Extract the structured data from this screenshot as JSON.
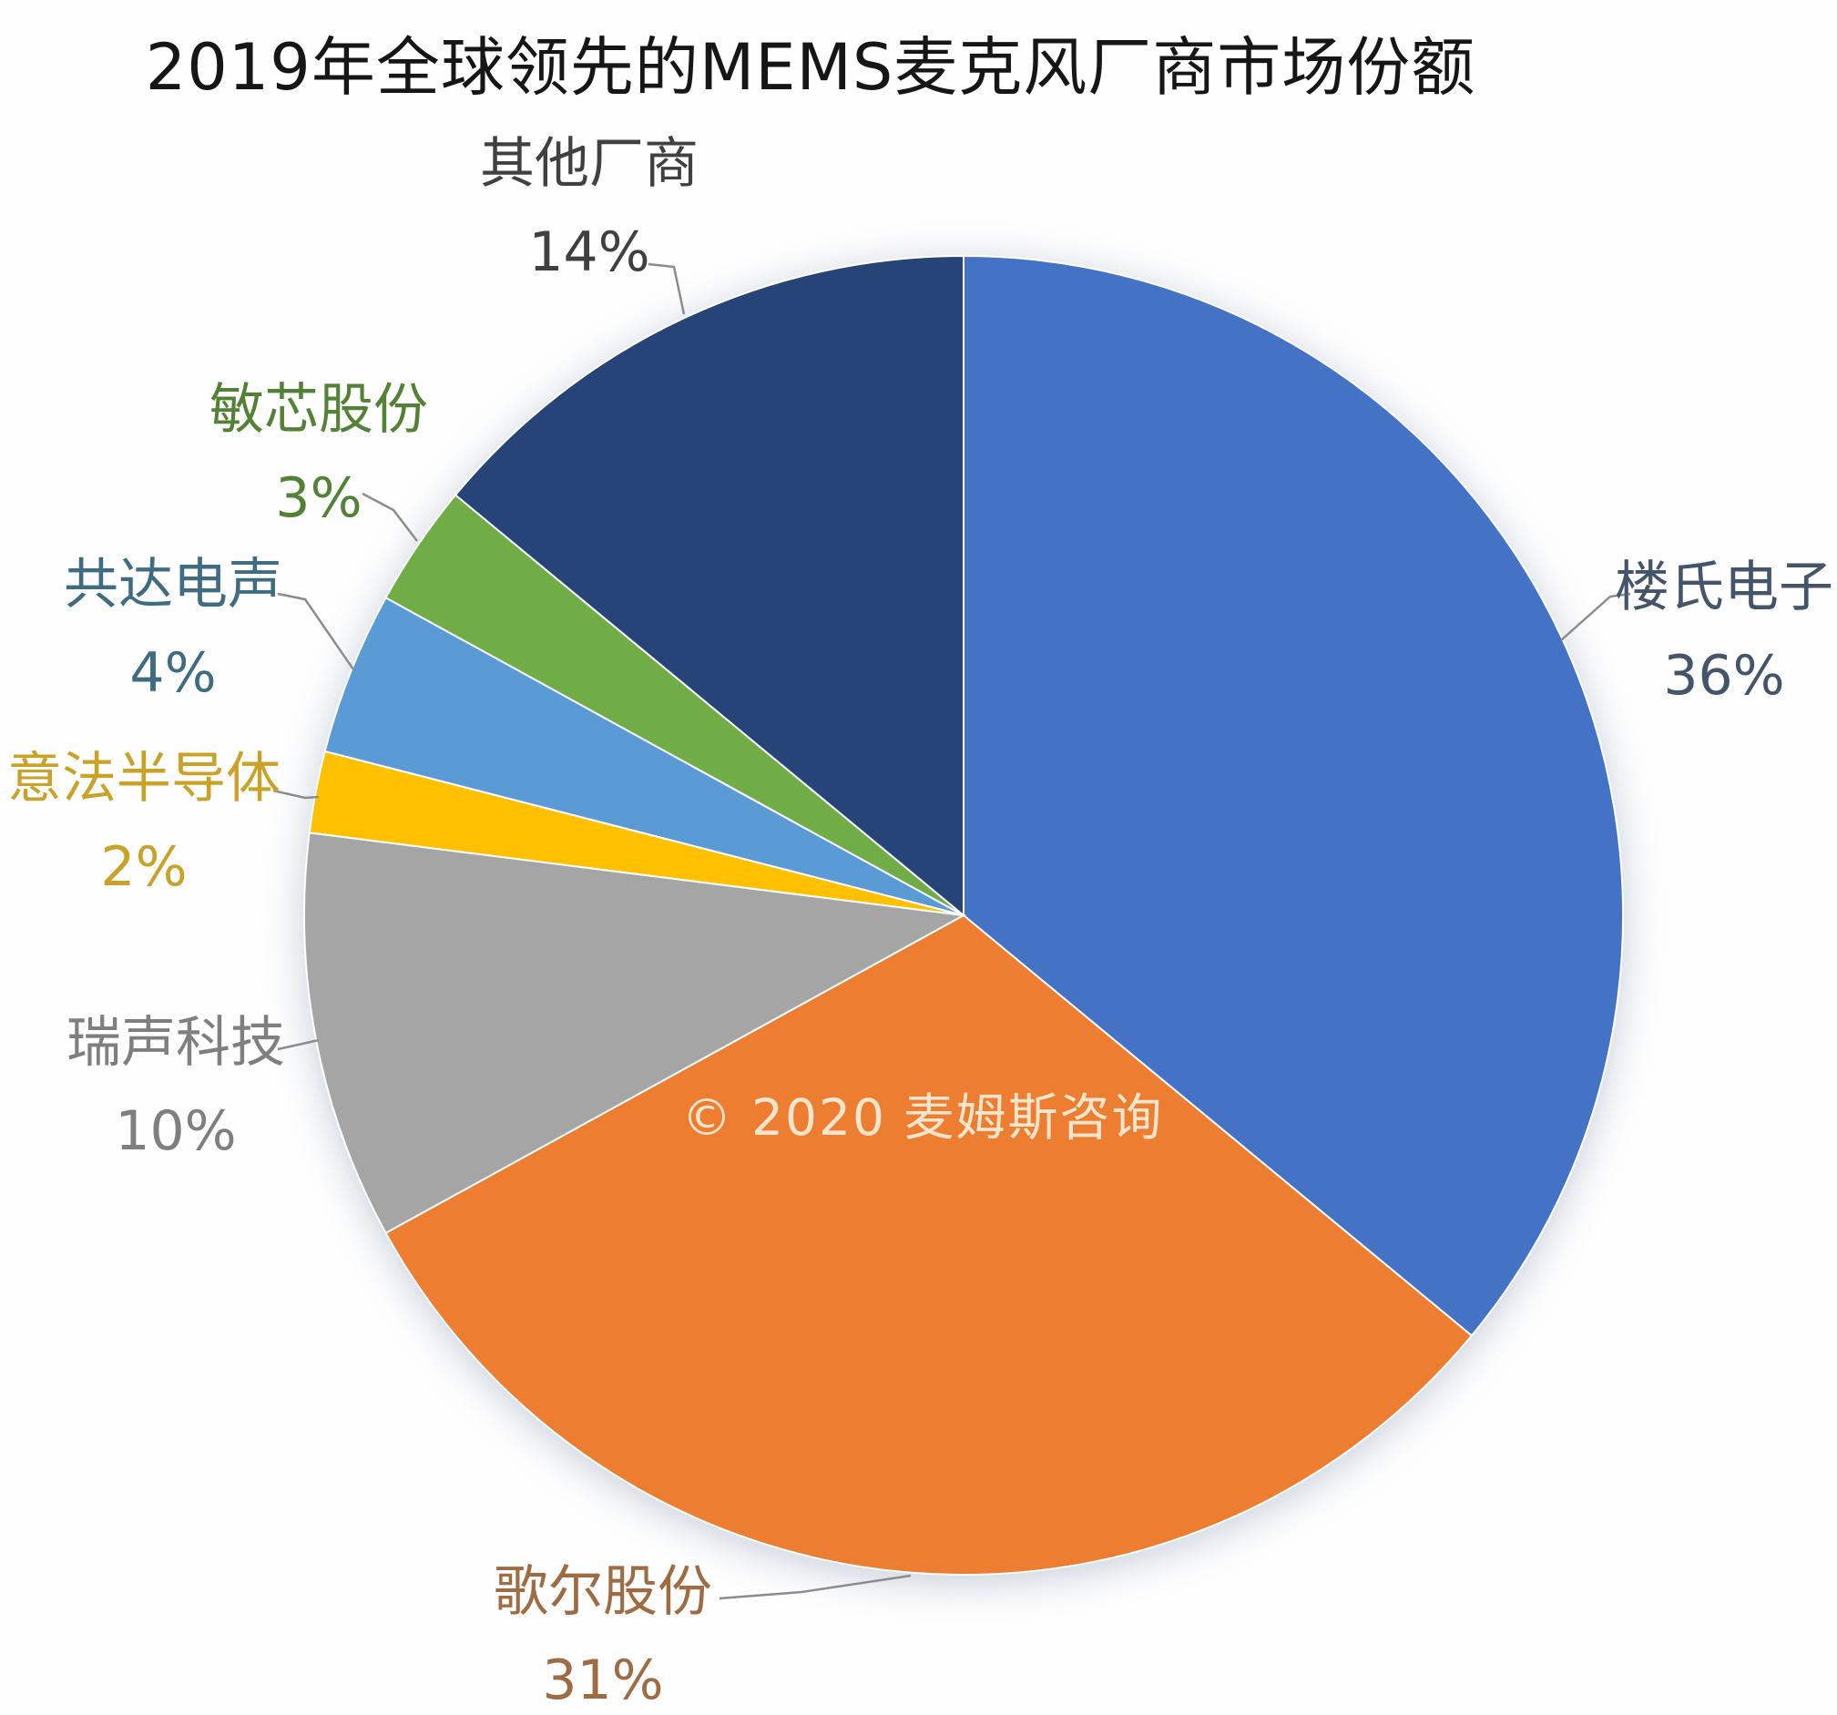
{
  "title": "2019年全球领先的MEMS麦克风厂商市场份额",
  "watermark": "© 2020 麦姆斯咨询",
  "chart_data": {
    "type": "pie",
    "title": "2019年全球领先的MEMS麦克风厂商市场份额",
    "unit": "%",
    "start_angle_deg": 0,
    "direction": "clockwise",
    "legend_position": "none",
    "labels_layout": "outside-with-leader-lines",
    "slices": [
      {
        "key": "knowles",
        "name": "楼氏电子",
        "value": 36,
        "pct_label": "36%",
        "color": "#4472C4",
        "label_color": "#44546A"
      },
      {
        "key": "goertek",
        "name": "歌尔股份",
        "value": 31,
        "pct_label": "31%",
        "color": "#ED7D31",
        "label_color": "#9E6B43"
      },
      {
        "key": "aac",
        "name": "瑞声科技",
        "value": 10,
        "pct_label": "10%",
        "color": "#A5A5A5",
        "label_color": "#7F7F7F"
      },
      {
        "key": "st",
        "name": "意法半导体",
        "value": 2,
        "pct_label": "2%",
        "color": "#FFC000",
        "label_color": "#C9A227"
      },
      {
        "key": "gongda",
        "name": "共达电声",
        "value": 4,
        "pct_label": "4%",
        "color": "#5B9BD5",
        "label_color": "#3F6C80"
      },
      {
        "key": "memsensing",
        "name": "敏芯股份",
        "value": 3,
        "pct_label": "3%",
        "color": "#70AD47",
        "label_color": "#538135"
      },
      {
        "key": "others",
        "name": "其他厂商",
        "value": 14,
        "pct_label": "14%",
        "color": "#264478",
        "label_color": "#404040"
      }
    ]
  }
}
